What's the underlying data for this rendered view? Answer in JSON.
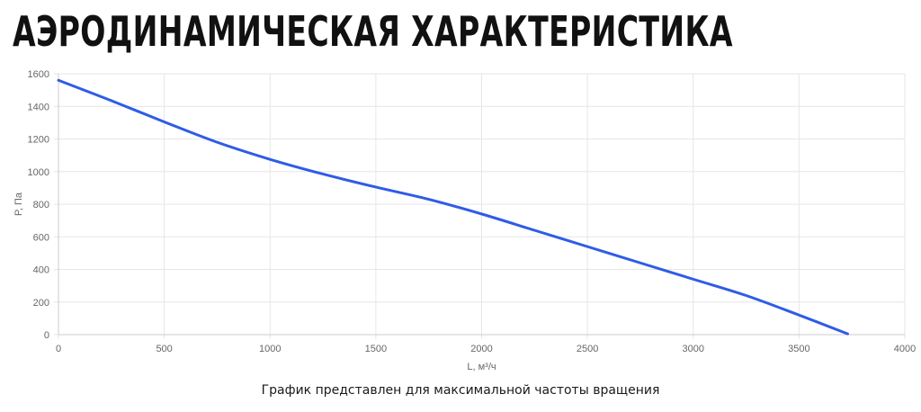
{
  "header": {
    "title": "АЭРОДИНАМИЧЕСКАЯ ХАРАКТЕРИСТИКА"
  },
  "chart_data": {
    "type": "line",
    "xlabel": "L, м³/ч",
    "ylabel": "P, Па",
    "xlim": [
      0,
      4000
    ],
    "ylim": [
      0,
      1600
    ],
    "x_ticks": [
      0,
      500,
      1000,
      1500,
      2000,
      2500,
      3000,
      3500,
      4000
    ],
    "y_ticks": [
      0,
      200,
      400,
      600,
      800,
      1000,
      1200,
      1400,
      1600
    ],
    "grid": true,
    "series": [
      {
        "color": "#2f5ce6",
        "x": [
          0,
          250,
          500,
          750,
          1000,
          1250,
          1500,
          1750,
          2000,
          2250,
          2500,
          2750,
          3000,
          3250,
          3500,
          3730
        ],
        "y": [
          1560,
          1435,
          1305,
          1180,
          1075,
          985,
          905,
          830,
          740,
          640,
          540,
          440,
          340,
          240,
          120,
          5
        ]
      }
    ]
  },
  "footnote": "График представлен для максимальной частоты вращения"
}
